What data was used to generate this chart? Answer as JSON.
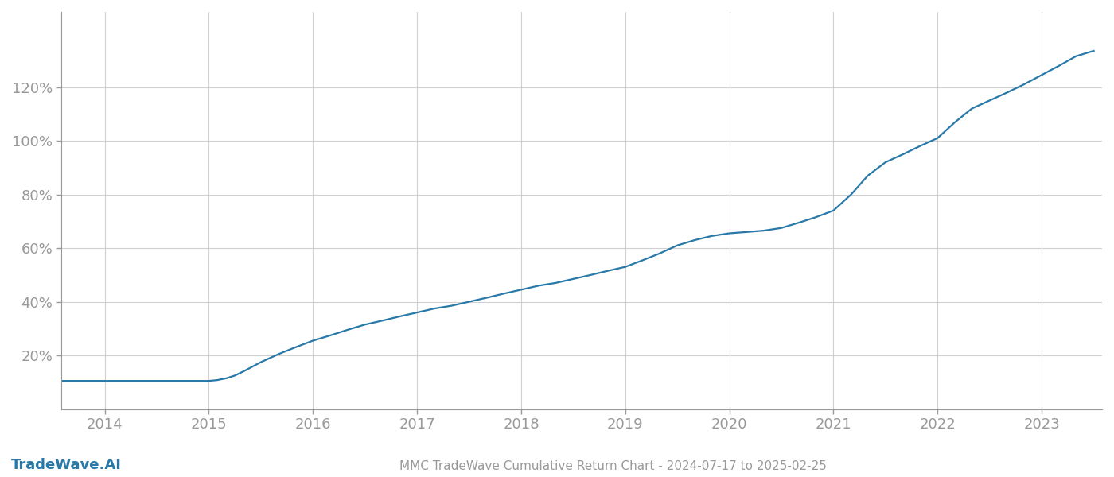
{
  "title": "MMC TradeWave Cumulative Return Chart - 2024-07-17 to 2025-02-25",
  "watermark": "TradeWave.AI",
  "line_color": "#2979a8",
  "background_color": "#ffffff",
  "grid_color": "#d0d0d0",
  "tick_color": "#999999",
  "x_years": [
    2014,
    2015,
    2016,
    2017,
    2018,
    2019,
    2020,
    2021,
    2022,
    2023
  ],
  "data_points": [
    {
      "year": 2013.58,
      "pct": 10.5
    },
    {
      "year": 2013.75,
      "pct": 10.5
    },
    {
      "year": 2014.0,
      "pct": 10.5
    },
    {
      "year": 2014.25,
      "pct": 10.5
    },
    {
      "year": 2014.5,
      "pct": 10.5
    },
    {
      "year": 2014.75,
      "pct": 10.5
    },
    {
      "year": 2015.0,
      "pct": 10.5
    },
    {
      "year": 2015.08,
      "pct": 10.8
    },
    {
      "year": 2015.17,
      "pct": 11.5
    },
    {
      "year": 2015.25,
      "pct": 12.5
    },
    {
      "year": 2015.33,
      "pct": 14.0
    },
    {
      "year": 2015.5,
      "pct": 17.5
    },
    {
      "year": 2015.67,
      "pct": 20.5
    },
    {
      "year": 2015.83,
      "pct": 23.0
    },
    {
      "year": 2016.0,
      "pct": 25.5
    },
    {
      "year": 2016.17,
      "pct": 27.5
    },
    {
      "year": 2016.33,
      "pct": 29.5
    },
    {
      "year": 2016.5,
      "pct": 31.5
    },
    {
      "year": 2016.67,
      "pct": 33.0
    },
    {
      "year": 2016.83,
      "pct": 34.5
    },
    {
      "year": 2017.0,
      "pct": 36.0
    },
    {
      "year": 2017.17,
      "pct": 37.5
    },
    {
      "year": 2017.33,
      "pct": 38.5
    },
    {
      "year": 2017.5,
      "pct": 40.0
    },
    {
      "year": 2017.67,
      "pct": 41.5
    },
    {
      "year": 2017.83,
      "pct": 43.0
    },
    {
      "year": 2018.0,
      "pct": 44.5
    },
    {
      "year": 2018.17,
      "pct": 46.0
    },
    {
      "year": 2018.33,
      "pct": 47.0
    },
    {
      "year": 2018.5,
      "pct": 48.5
    },
    {
      "year": 2018.67,
      "pct": 50.0
    },
    {
      "year": 2018.83,
      "pct": 51.5
    },
    {
      "year": 2019.0,
      "pct": 53.0
    },
    {
      "year": 2019.17,
      "pct": 55.5
    },
    {
      "year": 2019.33,
      "pct": 58.0
    },
    {
      "year": 2019.5,
      "pct": 61.0
    },
    {
      "year": 2019.67,
      "pct": 63.0
    },
    {
      "year": 2019.83,
      "pct": 64.5
    },
    {
      "year": 2020.0,
      "pct": 65.5
    },
    {
      "year": 2020.17,
      "pct": 66.0
    },
    {
      "year": 2020.33,
      "pct": 66.5
    },
    {
      "year": 2020.5,
      "pct": 67.5
    },
    {
      "year": 2020.67,
      "pct": 69.5
    },
    {
      "year": 2020.83,
      "pct": 71.5
    },
    {
      "year": 2021.0,
      "pct": 74.0
    },
    {
      "year": 2021.17,
      "pct": 80.0
    },
    {
      "year": 2021.33,
      "pct": 87.0
    },
    {
      "year": 2021.5,
      "pct": 92.0
    },
    {
      "year": 2021.67,
      "pct": 95.0
    },
    {
      "year": 2021.83,
      "pct": 98.0
    },
    {
      "year": 2022.0,
      "pct": 101.0
    },
    {
      "year": 2022.17,
      "pct": 107.0
    },
    {
      "year": 2022.33,
      "pct": 112.0
    },
    {
      "year": 2022.5,
      "pct": 115.0
    },
    {
      "year": 2022.67,
      "pct": 118.0
    },
    {
      "year": 2022.83,
      "pct": 121.0
    },
    {
      "year": 2023.0,
      "pct": 124.5
    },
    {
      "year": 2023.17,
      "pct": 128.0
    },
    {
      "year": 2023.33,
      "pct": 131.5
    },
    {
      "year": 2023.5,
      "pct": 133.5
    }
  ],
  "yticks": [
    20,
    40,
    60,
    80,
    100,
    120
  ],
  "ylim": [
    0,
    148
  ],
  "xlim": [
    2013.58,
    2023.58
  ],
  "line_width": 1.6,
  "title_fontsize": 11,
  "watermark_fontsize": 13,
  "tick_fontsize": 13
}
